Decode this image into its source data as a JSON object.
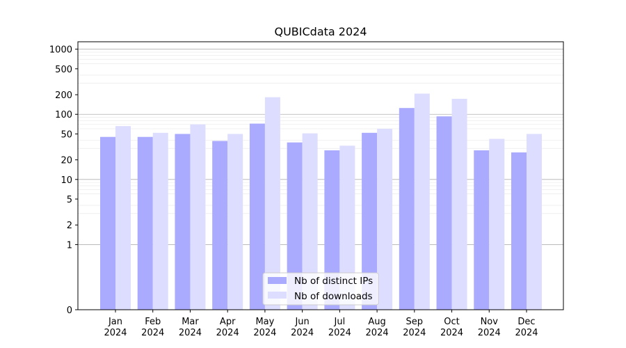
{
  "chart_data": {
    "type": "bar",
    "title": "QUBICdata 2024",
    "xlabel": "",
    "ylabel": "",
    "y_scale": "symlog",
    "ylim": [
      0,
      1300
    ],
    "yticks": [
      0,
      1,
      2,
      5,
      10,
      20,
      50,
      100,
      200,
      500,
      1000
    ],
    "ytick_labels": [
      "0",
      "1",
      "2",
      "5",
      "10",
      "20",
      "50",
      "100",
      "200",
      "500",
      "1000"
    ],
    "categories": [
      {
        "month": "Jan",
        "year": "2024"
      },
      {
        "month": "Feb",
        "year": "2024"
      },
      {
        "month": "Mar",
        "year": "2024"
      },
      {
        "month": "Apr",
        "year": "2024"
      },
      {
        "month": "May",
        "year": "2024"
      },
      {
        "month": "Jun",
        "year": "2024"
      },
      {
        "month": "Jul",
        "year": "2024"
      },
      {
        "month": "Aug",
        "year": "2024"
      },
      {
        "month": "Sep",
        "year": "2024"
      },
      {
        "month": "Oct",
        "year": "2024"
      },
      {
        "month": "Nov",
        "year": "2024"
      },
      {
        "month": "Dec",
        "year": "2024"
      }
    ],
    "series": [
      {
        "name": "Nb of distinct IPs",
        "color": "#aaaaff",
        "values": [
          45,
          45,
          50,
          39,
          72,
          37,
          28,
          52,
          125,
          93,
          28,
          26
        ]
      },
      {
        "name": "Nb of downloads",
        "color": "#ddddff",
        "values": [
          66,
          52,
          70,
          50,
          183,
          51,
          33,
          60,
          208,
          173,
          42,
          50
        ]
      }
    ],
    "grid": true,
    "legend_position": "bottom-center"
  }
}
